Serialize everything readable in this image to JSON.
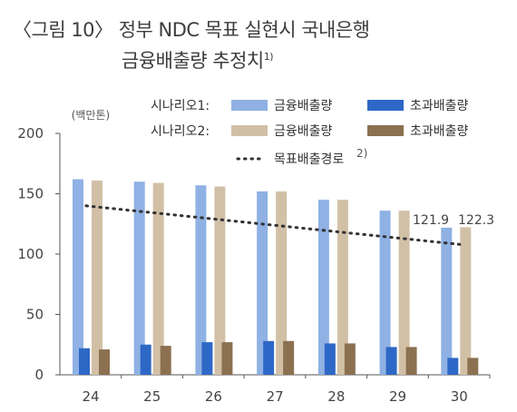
{
  "title": {
    "line1": "〈그림 10〉 정부 NDC 목표 실현시 국내은행",
    "line2": "금융배출량 추정치",
    "footnote_mark": "1)"
  },
  "chart_data": {
    "type": "bar",
    "unit_label": "(백만톤)",
    "categories": [
      "24",
      "25",
      "26",
      "27",
      "28",
      "29",
      "30"
    ],
    "ylim": [
      0,
      200
    ],
    "yticks": [
      "0",
      "50",
      "100",
      "150",
      "200"
    ],
    "series": [
      {
        "name": "금융배출량",
        "scenario": "시나리오1",
        "color": "#8fb1e3",
        "values": [
          162,
          160,
          157,
          152,
          145,
          136,
          121.9
        ]
      },
      {
        "name": "금융배출량",
        "scenario": "시나리오2",
        "color": "#d2c0a6",
        "values": [
          161,
          159,
          156,
          152,
          145,
          136,
          122.3
        ]
      },
      {
        "name": "초과배출량",
        "scenario": "시나리오1",
        "color": "#2e68c6",
        "values": [
          22,
          25,
          27,
          28,
          26,
          23,
          14
        ]
      },
      {
        "name": "초과배출량",
        "scenario": "시나리오2",
        "color": "#8b7150",
        "values": [
          21,
          24,
          27,
          28,
          26,
          23,
          14
        ]
      }
    ],
    "target_line": {
      "name": "목표배출경로",
      "footnote_mark": "2)",
      "x": [
        "24",
        "30"
      ],
      "y": [
        140,
        108
      ]
    },
    "legend": {
      "scenario1_label": "시나리오1:",
      "scenario2_label": "시나리오2:",
      "position": "top-right"
    },
    "data_labels": [
      {
        "category": "30",
        "series": "시나리오1 금융배출량",
        "text": "121.9"
      },
      {
        "category": "30",
        "series": "시나리오2 금융배출량",
        "text": "122.3"
      }
    ]
  }
}
